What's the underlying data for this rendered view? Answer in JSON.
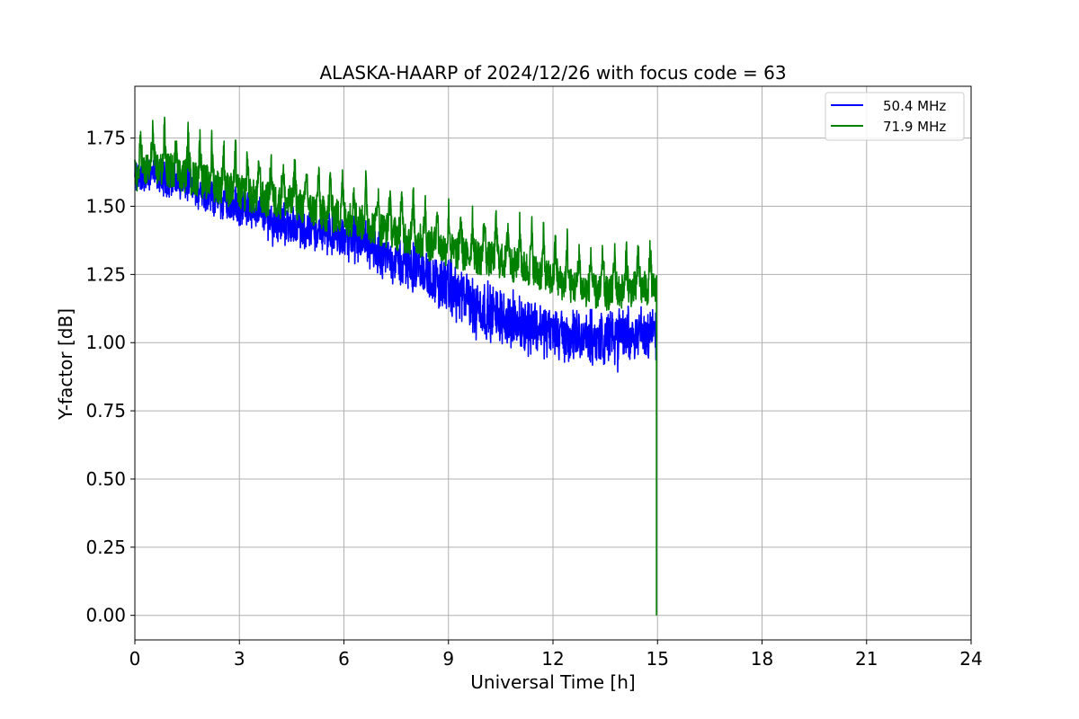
{
  "chart_data": {
    "type": "line",
    "title": "ALASKA-HAARP of 2024/12/26 with focus code = 63",
    "xlabel": "Universal Time [h]",
    "ylabel": "Y-factor [dB]",
    "xlim": [
      0,
      24
    ],
    "ylim": [
      -0.09,
      1.94
    ],
    "xticks": [
      0,
      3,
      6,
      9,
      12,
      15,
      18,
      21,
      24
    ],
    "xtick_labels": [
      "0",
      "3",
      "6",
      "9",
      "12",
      "15",
      "18",
      "21",
      "24"
    ],
    "yticks": [
      0.0,
      0.25,
      0.5,
      0.75,
      1.0,
      1.25,
      1.5,
      1.75
    ],
    "ytick_labels": [
      "0.00",
      "0.25",
      "0.50",
      "0.75",
      "1.00",
      "1.25",
      "1.50",
      "1.75"
    ],
    "grid": true,
    "legend_position": "top-right",
    "series": [
      {
        "name": "50.4 MHz",
        "color": "#0000ff",
        "x": [
          0,
          0.5,
          1,
          1.5,
          2,
          2.5,
          3,
          3.5,
          4,
          4.5,
          5,
          5.5,
          6,
          6.5,
          7,
          7.5,
          8,
          8.5,
          9,
          9.5,
          10,
          10.5,
          11,
          11.5,
          12,
          12.5,
          13,
          13.5,
          14,
          14.5,
          14.95
        ],
        "y": [
          1.6,
          1.62,
          1.6,
          1.58,
          1.56,
          1.52,
          1.5,
          1.48,
          1.45,
          1.43,
          1.42,
          1.4,
          1.38,
          1.37,
          1.33,
          1.3,
          1.28,
          1.24,
          1.2,
          1.16,
          1.12,
          1.1,
          1.07,
          1.06,
          1.04,
          1.02,
          1.01,
          1.02,
          1.03,
          1.04,
          1.03
        ],
        "band": [
          0.1,
          0.1,
          0.1,
          0.1,
          0.11,
          0.11,
          0.11,
          0.11,
          0.12,
          0.12,
          0.12,
          0.12,
          0.13,
          0.13,
          0.13,
          0.14,
          0.14,
          0.15,
          0.16,
          0.16,
          0.16,
          0.16,
          0.16,
          0.16,
          0.16,
          0.16,
          0.16,
          0.16,
          0.15,
          0.15,
          0.15
        ]
      },
      {
        "name": "71.9 MHz",
        "color": "#008000",
        "x": [
          0,
          0.5,
          1,
          1.5,
          2,
          2.5,
          3,
          3.5,
          4,
          4.5,
          5,
          5.5,
          6,
          6.5,
          7,
          7.5,
          8,
          8.5,
          9,
          9.5,
          10,
          10.5,
          11,
          11.5,
          12,
          12.5,
          13,
          13.5,
          14,
          14.5,
          14.95
        ],
        "y": [
          1.64,
          1.67,
          1.66,
          1.64,
          1.62,
          1.6,
          1.58,
          1.56,
          1.55,
          1.54,
          1.52,
          1.5,
          1.49,
          1.47,
          1.45,
          1.43,
          1.41,
          1.39,
          1.37,
          1.35,
          1.34,
          1.33,
          1.31,
          1.29,
          1.26,
          1.24,
          1.22,
          1.21,
          1.22,
          1.23,
          1.22
        ],
        "peak_amp": 0.15,
        "dip_amp": 0.06
      }
    ],
    "drop_x": 14.97,
    "drop_to": 0.0,
    "legend": [
      {
        "label": "50.4 MHz",
        "color": "#0000ff"
      },
      {
        "label": "71.9 MHz",
        "color": "#008000"
      }
    ]
  }
}
